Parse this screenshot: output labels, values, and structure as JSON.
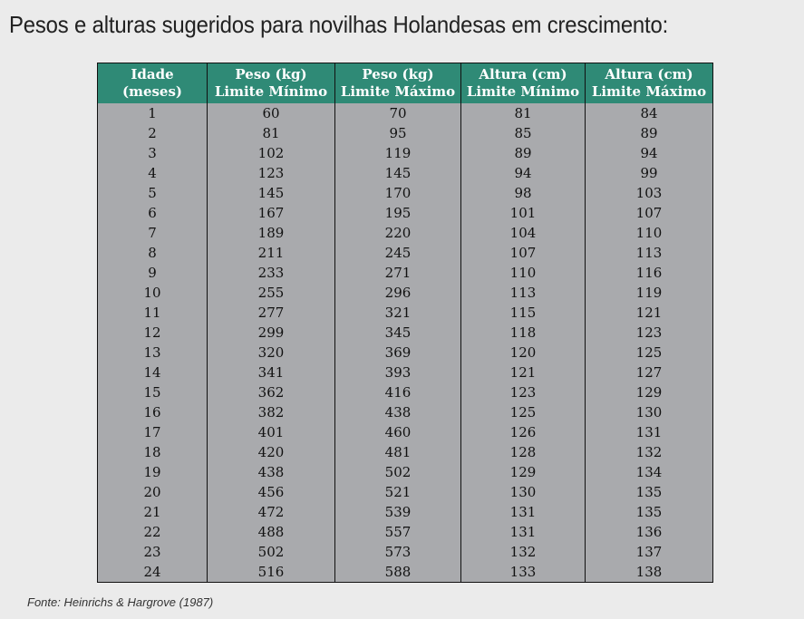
{
  "title": "Pesos e alturas sugeridos para novilhas Holandesas em crescimento:",
  "table": {
    "headers": [
      {
        "line1": "Idade",
        "line2": "(meses)"
      },
      {
        "line1": "Peso (kg)",
        "line2": "Limite Mínimo"
      },
      {
        "line1": "Peso (kg)",
        "line2": "Limite Máximo"
      },
      {
        "line1": "Altura (cm)",
        "line2": "Limite Mínimo"
      },
      {
        "line1": "Altura (cm)",
        "line2": "Limite Máximo"
      }
    ],
    "rows": [
      [
        "1",
        "60",
        "70",
        "81",
        "84"
      ],
      [
        "2",
        "81",
        "95",
        "85",
        "89"
      ],
      [
        "3",
        "102",
        "119",
        "89",
        "94"
      ],
      [
        "4",
        "123",
        "145",
        "94",
        "99"
      ],
      [
        "5",
        "145",
        "170",
        "98",
        "103"
      ],
      [
        "6",
        "167",
        "195",
        "101",
        "107"
      ],
      [
        "7",
        "189",
        "220",
        "104",
        "110"
      ],
      [
        "8",
        "211",
        "245",
        "107",
        "113"
      ],
      [
        "9",
        "233",
        "271",
        "110",
        "116"
      ],
      [
        "10",
        "255",
        "296",
        "113",
        "119"
      ],
      [
        "11",
        "277",
        "321",
        "115",
        "121"
      ],
      [
        "12",
        "299",
        "345",
        "118",
        "123"
      ],
      [
        "13",
        "320",
        "369",
        "120",
        "125"
      ],
      [
        "14",
        "341",
        "393",
        "121",
        "127"
      ],
      [
        "15",
        "362",
        "416",
        "123",
        "129"
      ],
      [
        "16",
        "382",
        "438",
        "125",
        "130"
      ],
      [
        "17",
        "401",
        "460",
        "126",
        "131"
      ],
      [
        "18",
        "420",
        "481",
        "128",
        "132"
      ],
      [
        "19",
        "438",
        "502",
        "129",
        "134"
      ],
      [
        "20",
        "456",
        "521",
        "130",
        "135"
      ],
      [
        "21",
        "472",
        "539",
        "131",
        "135"
      ],
      [
        "22",
        "488",
        "557",
        "131",
        "136"
      ],
      [
        "23",
        "502",
        "573",
        "132",
        "137"
      ],
      [
        "24",
        "516",
        "588",
        "133",
        "138"
      ]
    ]
  },
  "source": "Fonte: Heinrichs & Hargrove (1987)",
  "colors": {
    "header_background": "#2f8a76",
    "body_background": "#a9aaad",
    "page_background": "#ebebeb"
  }
}
